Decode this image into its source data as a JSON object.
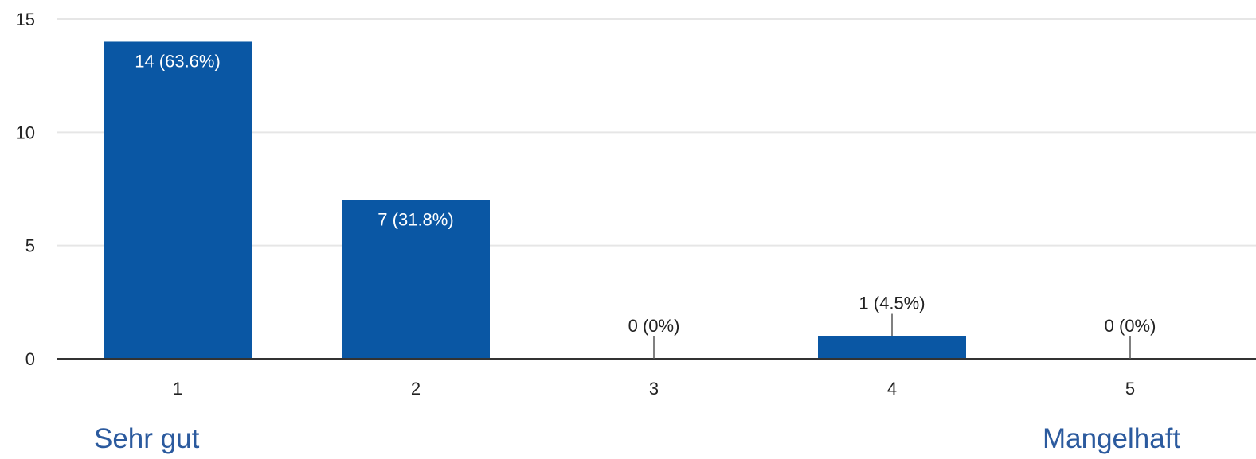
{
  "chart_data": {
    "type": "bar",
    "categories": [
      "1",
      "2",
      "3",
      "4",
      "5"
    ],
    "values": [
      14,
      7,
      0,
      1,
      0
    ],
    "data_labels": [
      "14 (63.6%)",
      "7 (31.8%)",
      "0 (0%)",
      "1 (4.5%)",
      "0 (0%)"
    ],
    "ylim": [
      0,
      15
    ],
    "yticks": [
      0,
      5,
      10,
      15
    ],
    "grid": true,
    "legend": "none",
    "bar_color": "#0a57a4",
    "grid_color": "#e6e6e6",
    "axis_color": "#333333"
  },
  "scale_labels": {
    "low": "Sehr gut",
    "high": "Mangelhaft",
    "color": "#2b5a9e"
  }
}
